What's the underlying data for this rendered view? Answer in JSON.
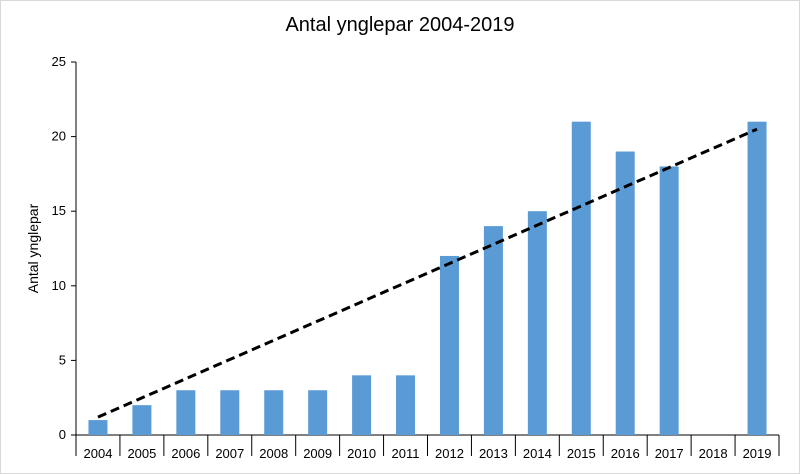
{
  "chart_data": {
    "type": "bar",
    "title": "Antal ynglepar 2004-2019",
    "xlabel": "",
    "ylabel": "Antal ynglepar",
    "categories": [
      "2004",
      "2005",
      "2006",
      "2007",
      "2008",
      "2009",
      "2010",
      "2011",
      "2012",
      "2013",
      "2014",
      "2015",
      "2016",
      "2017",
      "2018",
      "2019"
    ],
    "values": [
      1,
      2,
      3,
      3,
      3,
      3,
      4,
      4,
      12,
      14,
      15,
      21,
      19,
      18,
      null,
      21
    ],
    "ylim": [
      0,
      25
    ],
    "yticks": [
      0,
      5,
      10,
      15,
      20,
      25
    ],
    "grid": false,
    "bar_color": "#5b9bd5",
    "trendline": {
      "type": "linear",
      "style": "dashed",
      "color": "#000000",
      "start": 1.2,
      "end": 20.5
    }
  }
}
